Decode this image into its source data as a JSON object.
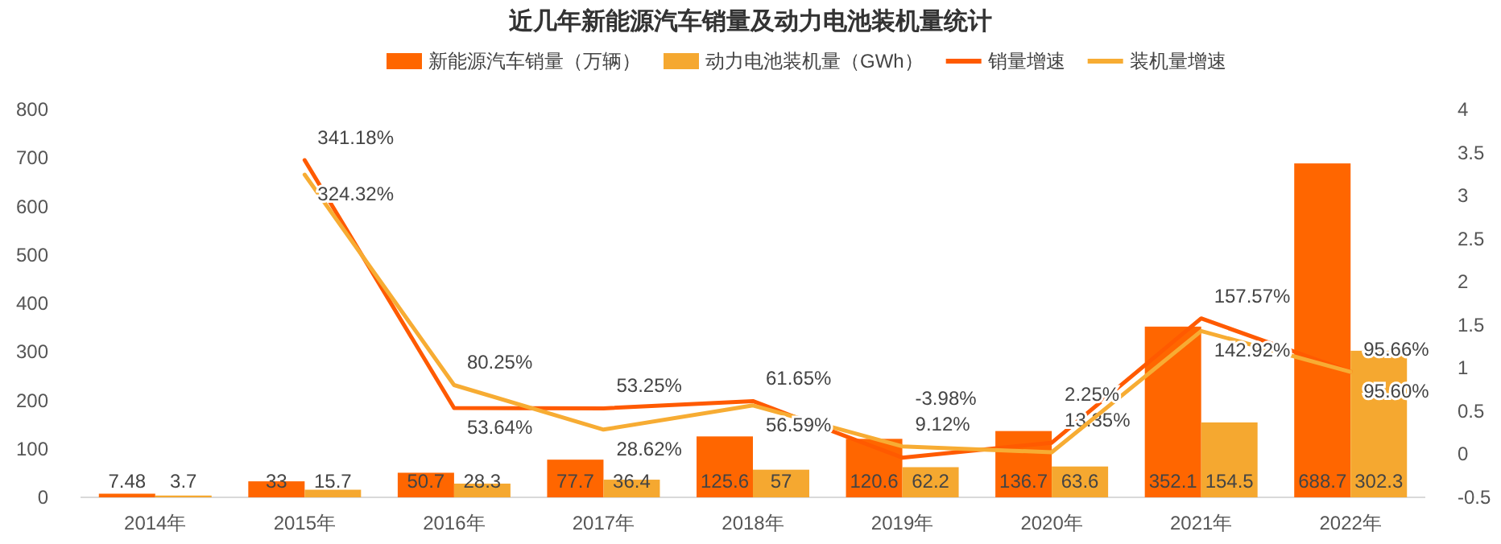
{
  "chart_data": {
    "type": "bar",
    "title": "近几年新能源汽车销量及动力电池装机量统计",
    "categories": [
      "2014年",
      "2015年",
      "2016年",
      "2017年",
      "2018年",
      "2019年",
      "2020年",
      "2021年",
      "2022年"
    ],
    "series": [
      {
        "name": "新能源汽车销量（万辆）",
        "color": "#ff6600",
        "values": [
          7.48,
          33,
          50.7,
          77.7,
          125.6,
          120.6,
          136.7,
          352.1,
          688.7
        ],
        "value_labels": [
          "7.48",
          "33",
          "50.7",
          "77.7",
          "125.6",
          "120.6",
          "136.7",
          "352.1",
          "688.7"
        ]
      },
      {
        "name": "动力电池装机量（GWh）",
        "color": "#f5a830",
        "values": [
          3.7,
          15.7,
          28.3,
          36.4,
          57,
          62.2,
          63.6,
          154.5,
          302.3
        ],
        "value_labels": [
          "3.7",
          "15.7",
          "28.3",
          "36.4",
          "57",
          "62.2",
          "63.6",
          "154.5",
          "302.3"
        ]
      },
      {
        "name": "销量增速",
        "type": "line",
        "axis": "y2",
        "color": "#ff5a00",
        "values": [
          null,
          3.4118,
          0.5364,
          0.5325,
          0.6165,
          -0.0398,
          0.1335,
          1.5757,
          0.9566
        ],
        "value_labels": [
          null,
          "341.18%",
          "53.64%",
          "53.25%",
          "61.65%",
          "-3.98%",
          "13.35%",
          "157.57%",
          "95.66%"
        ]
      },
      {
        "name": "装机量增速",
        "type": "line",
        "axis": "y2",
        "color": "#f7ac33",
        "values": [
          null,
          3.2432,
          0.8025,
          0.2862,
          0.5659,
          0.0912,
          0.0225,
          1.4292,
          0.956
        ],
        "value_labels": [
          null,
          "324.32%",
          "80.25%",
          "28.62%",
          "56.59%",
          "9.12%",
          "2.25%",
          "142.92%",
          "95.60%"
        ]
      }
    ],
    "ylim": [
      0,
      800
    ],
    "yticks": [
      0,
      100,
      200,
      300,
      400,
      500,
      600,
      700,
      800
    ],
    "y2lim": [
      -0.5,
      4
    ],
    "y2ticks": [
      -0.5,
      0,
      0.5,
      1,
      1.5,
      2,
      2.5,
      3,
      3.5,
      4
    ],
    "legend": "top"
  }
}
